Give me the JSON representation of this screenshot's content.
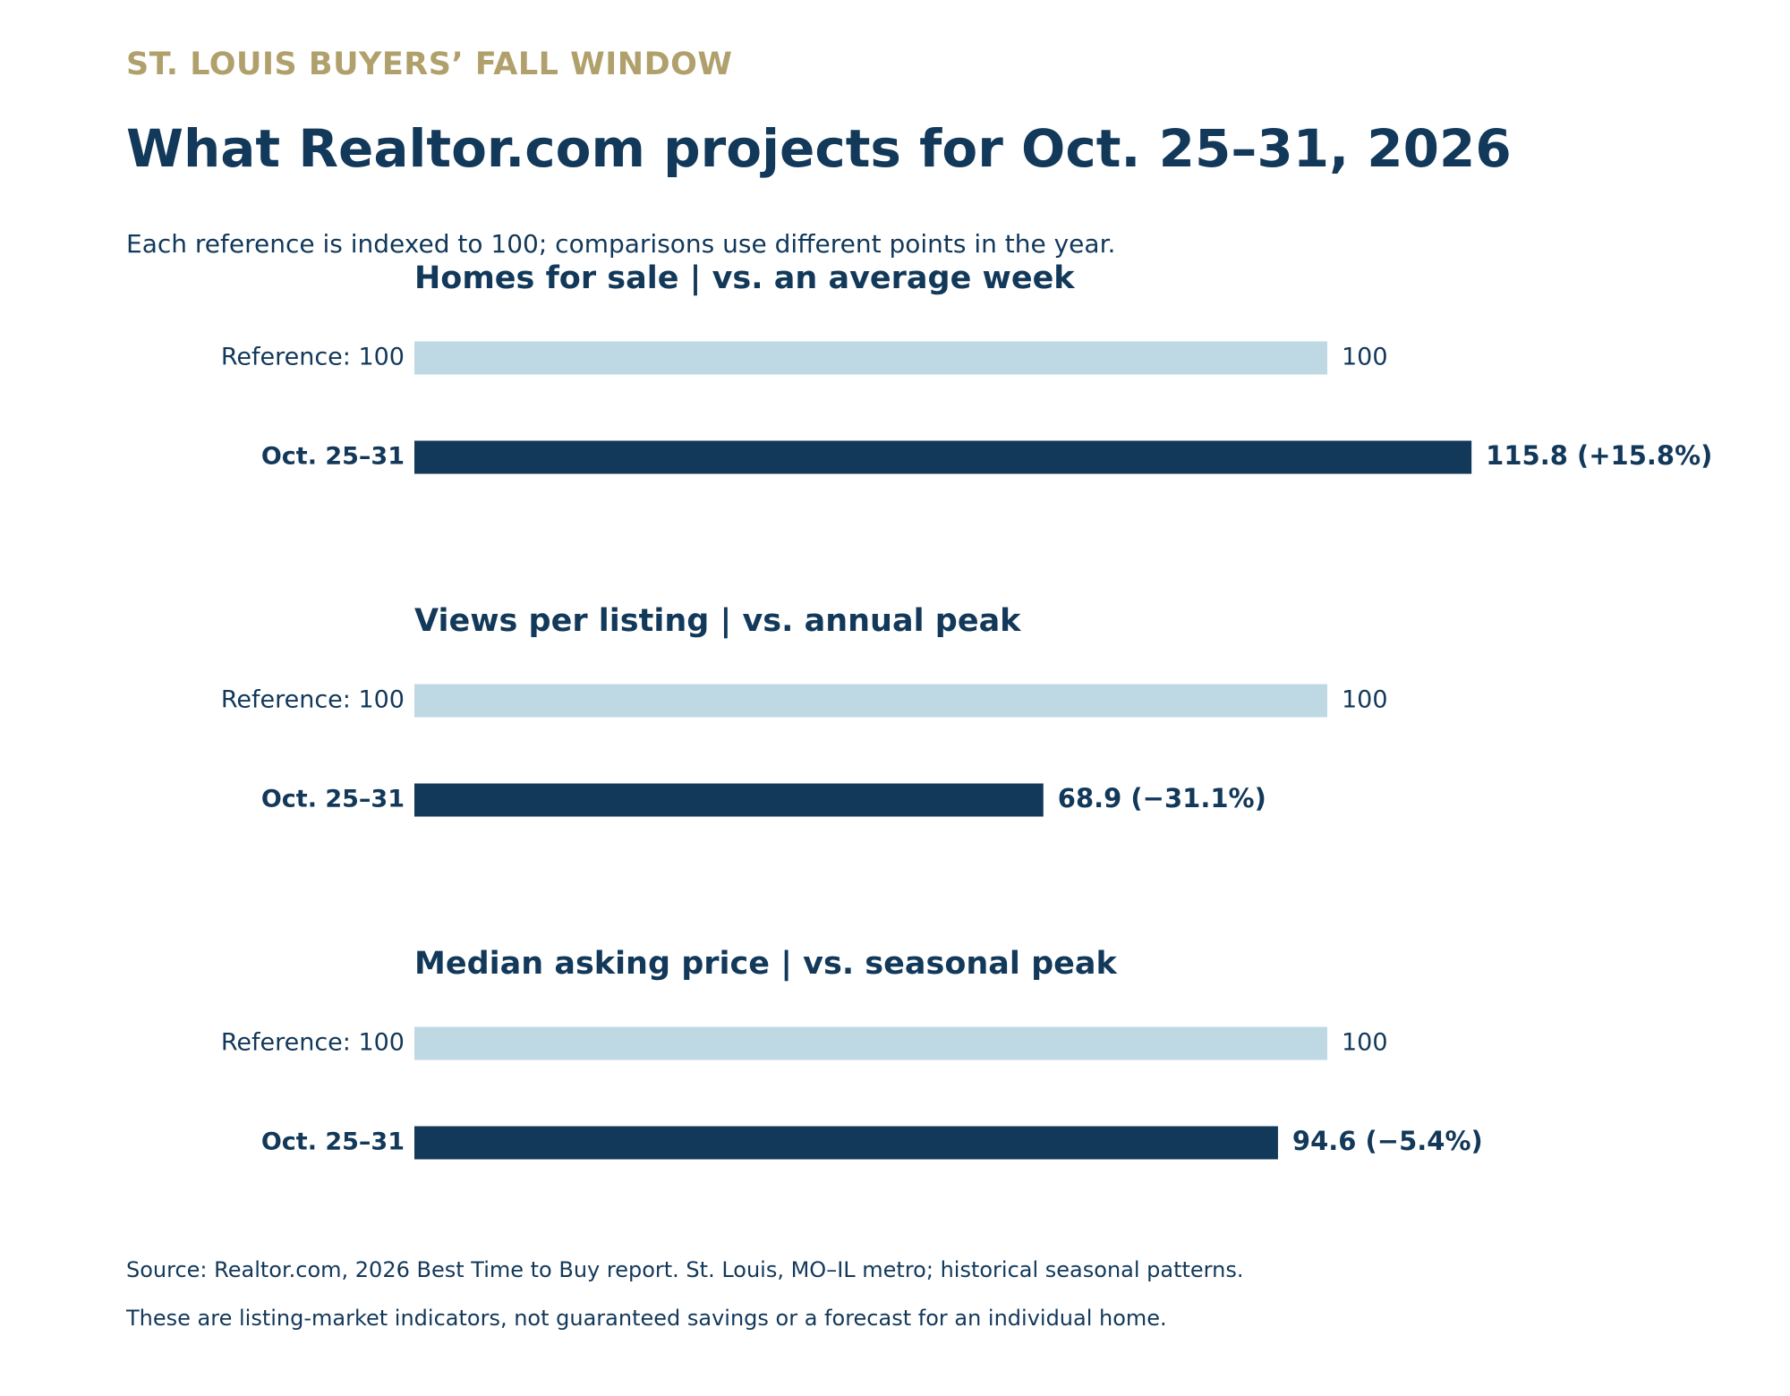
{
  "header": {
    "kicker": "ST. LOUIS BUYERS’ FALL WINDOW",
    "title": "What Realtor.com projects for Oct. 25–31, 2026",
    "subtitle": "Each reference is indexed to 100; comparisons use different points in the year."
  },
  "colors": {
    "kicker": "#b0a06c",
    "text": "#12385a",
    "reference_bar": "#bfd9e4",
    "projection_bar": "#12385a"
  },
  "chart_data": [
    {
      "type": "bar",
      "orientation": "horizontal",
      "title": "Homes for sale  |  vs. an average week",
      "categories": [
        "Reference: 100",
        "Oct. 25–31"
      ],
      "values": [
        100,
        115.8
      ],
      "value_labels": [
        "100",
        "115.8  (+15.8%)"
      ],
      "xlim": [
        0,
        145
      ]
    },
    {
      "type": "bar",
      "orientation": "horizontal",
      "title": "Views per listing  |  vs. annual peak",
      "categories": [
        "Reference: 100",
        "Oct. 25–31"
      ],
      "values": [
        100,
        68.9
      ],
      "value_labels": [
        "100",
        "68.9  (−31.1%)"
      ],
      "xlim": [
        0,
        145
      ]
    },
    {
      "type": "bar",
      "orientation": "horizontal",
      "title": "Median asking price  |  vs. seasonal peak",
      "categories": [
        "Reference: 100",
        "Oct. 25–31"
      ],
      "values": [
        100,
        94.6
      ],
      "value_labels": [
        "100",
        "94.6  (−5.4%)"
      ],
      "xlim": [
        0,
        145
      ]
    }
  ],
  "footer": {
    "source": "Source: Realtor.com, 2026 Best Time to Buy report. St. Louis, MO–IL metro; historical seasonal patterns.",
    "note": "These are listing-market indicators, not guaranteed savings or a forecast for an individual home."
  }
}
